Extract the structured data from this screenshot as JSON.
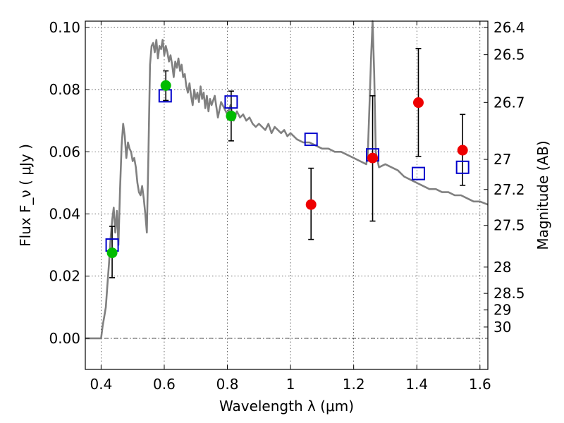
{
  "chart_data": {
    "type": "scatter",
    "xlabel": "Wavelength  λ (μm)",
    "ylabel": "Flux  F_ν  ( μJy )",
    "ylabel_right": "Magnitude (AB)",
    "xlim": [
      0.35,
      1.625
    ],
    "ylim": [
      -0.01,
      0.102
    ],
    "grid": true,
    "x_ticks": [
      0.4,
      0.6,
      0.8,
      1.0,
      1.2,
      1.4,
      1.6
    ],
    "x_tick_labels": [
      "0.4",
      "0.6",
      "0.8",
      "1",
      "1.2",
      "1.4",
      "1.6"
    ],
    "y_ticks": [
      0.0,
      0.02,
      0.04,
      0.06,
      0.08,
      0.1
    ],
    "y_tick_labels": [
      "0.00",
      "0.02",
      "0.04",
      "0.06",
      "0.08",
      "0.10"
    ],
    "mag_ticks": [
      26.4,
      26.5,
      26.7,
      27,
      27.2,
      27.5,
      28,
      28.5,
      29,
      30
    ],
    "mag_tick_labels": [
      "26.4",
      "26.5",
      "26.7",
      "27",
      "27.2",
      "27.5",
      "28",
      "28.5",
      "29",
      "30"
    ],
    "colors": {
      "sed": "#808080",
      "model": "#0000cc",
      "detection": "#00bb00",
      "upper": "#ee0000",
      "errorbar": "#000000"
    },
    "sed_spectrum": {
      "x": [
        0.35,
        0.4,
        0.405,
        0.41,
        0.415,
        0.42,
        0.425,
        0.43,
        0.435,
        0.44,
        0.445,
        0.45,
        0.455,
        0.46,
        0.465,
        0.47,
        0.475,
        0.48,
        0.485,
        0.49,
        0.495,
        0.5,
        0.505,
        0.51,
        0.515,
        0.52,
        0.525,
        0.53,
        0.535,
        0.54,
        0.545,
        0.55,
        0.555,
        0.56,
        0.565,
        0.57,
        0.575,
        0.58,
        0.585,
        0.59,
        0.595,
        0.6,
        0.605,
        0.61,
        0.615,
        0.62,
        0.625,
        0.63,
        0.635,
        0.64,
        0.645,
        0.65,
        0.655,
        0.66,
        0.665,
        0.67,
        0.675,
        0.68,
        0.685,
        0.69,
        0.695,
        0.7,
        0.705,
        0.71,
        0.715,
        0.72,
        0.725,
        0.73,
        0.735,
        0.74,
        0.745,
        0.75,
        0.76,
        0.77,
        0.78,
        0.79,
        0.8,
        0.81,
        0.82,
        0.83,
        0.84,
        0.85,
        0.86,
        0.87,
        0.88,
        0.89,
        0.9,
        0.91,
        0.92,
        0.93,
        0.94,
        0.95,
        0.96,
        0.97,
        0.98,
        0.99,
        1.0,
        1.02,
        1.04,
        1.06,
        1.08,
        1.1,
        1.12,
        1.14,
        1.16,
        1.18,
        1.2,
        1.22,
        1.24,
        1.245,
        1.25,
        1.255,
        1.26,
        1.265,
        1.27,
        1.28,
        1.3,
        1.32,
        1.34,
        1.36,
        1.38,
        1.4,
        1.42,
        1.44,
        1.46,
        1.48,
        1.5,
        1.52,
        1.54,
        1.56,
        1.58,
        1.6,
        1.625
      ],
      "y": [
        0.0,
        0.0,
        0.004,
        0.007,
        0.01,
        0.017,
        0.024,
        0.032,
        0.038,
        0.042,
        0.034,
        0.041,
        0.03,
        0.048,
        0.062,
        0.069,
        0.065,
        0.058,
        0.063,
        0.061,
        0.06,
        0.057,
        0.058,
        0.055,
        0.05,
        0.047,
        0.046,
        0.049,
        0.045,
        0.04,
        0.034,
        0.06,
        0.088,
        0.094,
        0.095,
        0.092,
        0.096,
        0.09,
        0.094,
        0.093,
        0.096,
        0.091,
        0.094,
        0.092,
        0.089,
        0.091,
        0.088,
        0.084,
        0.089,
        0.087,
        0.09,
        0.086,
        0.088,
        0.084,
        0.085,
        0.081,
        0.079,
        0.082,
        0.078,
        0.075,
        0.08,
        0.077,
        0.079,
        0.076,
        0.081,
        0.077,
        0.079,
        0.074,
        0.078,
        0.073,
        0.077,
        0.075,
        0.078,
        0.071,
        0.076,
        0.074,
        0.072,
        0.075,
        0.07,
        0.073,
        0.071,
        0.072,
        0.07,
        0.071,
        0.069,
        0.068,
        0.069,
        0.068,
        0.067,
        0.069,
        0.066,
        0.068,
        0.067,
        0.066,
        0.067,
        0.065,
        0.066,
        0.064,
        0.063,
        0.063,
        0.062,
        0.061,
        0.061,
        0.06,
        0.06,
        0.059,
        0.058,
        0.057,
        0.056,
        0.06,
        0.075,
        0.09,
        0.102,
        0.085,
        0.06,
        0.055,
        0.056,
        0.055,
        0.054,
        0.052,
        0.051,
        0.05,
        0.049,
        0.048,
        0.048,
        0.047,
        0.047,
        0.046,
        0.046,
        0.045,
        0.044,
        0.044,
        0.043
      ]
    },
    "model_points": [
      {
        "x": 0.435,
        "y": 0.03
      },
      {
        "x": 0.603,
        "y": 0.078
      },
      {
        "x": 0.812,
        "y": 0.076
      },
      {
        "x": 1.065,
        "y": 0.064
      },
      {
        "x": 1.26,
        "y": 0.059
      },
      {
        "x": 1.405,
        "y": 0.053
      },
      {
        "x": 1.545,
        "y": 0.055
      }
    ],
    "detections": [
      {
        "x": 0.435,
        "y": 0.0275,
        "err_low": 0.0195,
        "err_high": 0.036
      },
      {
        "x": 0.605,
        "y": 0.0813,
        "err_low": 0.0765,
        "err_high": 0.086
      },
      {
        "x": 0.812,
        "y": 0.0715,
        "err_low": 0.0635,
        "err_high": 0.0795
      }
    ],
    "upper_limits": [
      {
        "x": 1.065,
        "y": 0.043,
        "err_low": 0.0318,
        "err_high": 0.0547
      },
      {
        "x": 1.26,
        "y": 0.058,
        "err_low": 0.0377,
        "err_high": 0.078
      },
      {
        "x": 1.405,
        "y": 0.0758,
        "err_low": 0.0585,
        "err_high": 0.0932
      },
      {
        "x": 1.545,
        "y": 0.0605,
        "err_low": 0.0492,
        "err_high": 0.072
      }
    ]
  }
}
